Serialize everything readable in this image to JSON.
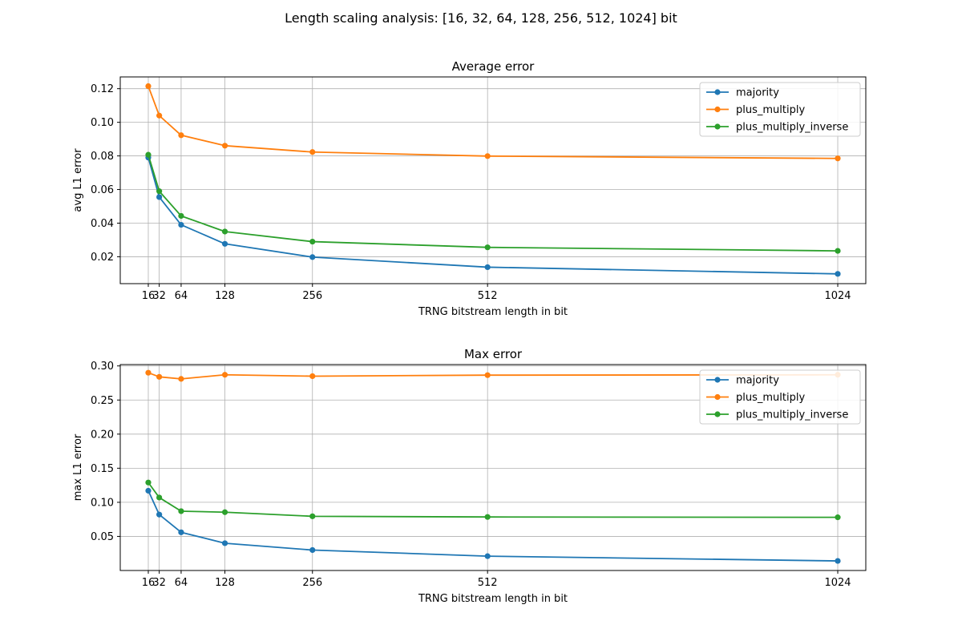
{
  "suptitle": "Length scaling analysis: [16, 32, 64, 128, 256, 512, 1024] bit",
  "colors": {
    "majority": "#1f77b4",
    "plus_multiply": "#ff7f0e",
    "plus_multiply_inverse": "#2ca02c",
    "grid": "#b0b0b0"
  },
  "chart_data": [
    {
      "type": "line",
      "title": "Average error",
      "xlabel": "TRNG bitstream length in bit",
      "ylabel": "avg L1 error",
      "x": [
        16,
        32,
        64,
        128,
        256,
        512,
        1024
      ],
      "x_ticks": [
        "16",
        "32",
        "64",
        "128",
        "256",
        "512",
        "1024"
      ],
      "y_ticks": [
        "0.02",
        "0.04",
        "0.06",
        "0.08",
        "0.10",
        "0.12"
      ],
      "y_tick_values": [
        0.02,
        0.04,
        0.06,
        0.08,
        0.1,
        0.12
      ],
      "xlim": [
        -25,
        1065
      ],
      "ylim": [
        0.004,
        0.127
      ],
      "grid": true,
      "legend": "top-right",
      "series": [
        {
          "name": "majority",
          "values": [
            0.079,
            0.0555,
            0.039,
            0.0277,
            0.0198,
            0.0138,
            0.0098
          ]
        },
        {
          "name": "plus_multiply",
          "values": [
            0.1215,
            0.104,
            0.0923,
            0.0861,
            0.0823,
            0.0799,
            0.0785
          ]
        },
        {
          "name": "plus_multiply_inverse",
          "values": [
            0.0807,
            0.059,
            0.0443,
            0.035,
            0.029,
            0.0256,
            0.0235
          ]
        }
      ]
    },
    {
      "type": "line",
      "title": "Max error",
      "xlabel": "TRNG bitstream length in bit",
      "ylabel": "max L1 error",
      "x": [
        16,
        32,
        64,
        128,
        256,
        512,
        1024
      ],
      "x_ticks": [
        "16",
        "32",
        "64",
        "128",
        "256",
        "512",
        "1024"
      ],
      "y_ticks": [
        "0.05",
        "0.10",
        "0.15",
        "0.20",
        "0.25",
        "0.30"
      ],
      "y_tick_values": [
        0.05,
        0.1,
        0.15,
        0.2,
        0.25,
        0.3
      ],
      "xlim": [
        -25,
        1065
      ],
      "ylim": [
        0.0,
        0.302
      ],
      "grid": true,
      "legend": "top-right",
      "series": [
        {
          "name": "majority",
          "values": [
            0.117,
            0.082,
            0.056,
            0.04,
            0.03,
            0.021,
            0.014
          ]
        },
        {
          "name": "plus_multiply",
          "values": [
            0.29,
            0.284,
            0.281,
            0.287,
            0.285,
            0.2865,
            0.287
          ]
        },
        {
          "name": "plus_multiply_inverse",
          "values": [
            0.129,
            0.107,
            0.087,
            0.0855,
            0.0795,
            0.0785,
            0.078
          ]
        }
      ]
    }
  ]
}
